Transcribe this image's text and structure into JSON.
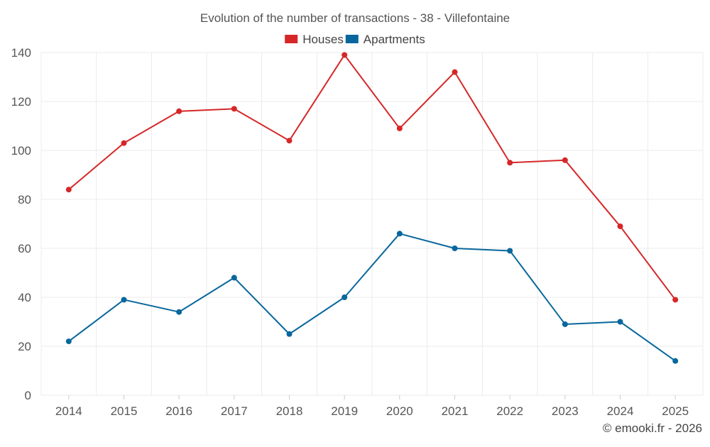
{
  "chart_data": {
    "type": "line",
    "title": "Evolution of the number of transactions - 38 - Villefontaine",
    "xlabel": "",
    "ylabel": "",
    "categories": [
      "2014",
      "2015",
      "2016",
      "2017",
      "2018",
      "2019",
      "2020",
      "2021",
      "2022",
      "2023",
      "2024",
      "2025"
    ],
    "series": [
      {
        "name": "Houses",
        "color": "#d62728",
        "values": [
          84,
          103,
          116,
          117,
          104,
          139,
          109,
          132,
          95,
          96,
          69,
          39
        ]
      },
      {
        "name": "Apartments",
        "color": "#08679c",
        "values": [
          22,
          39,
          34,
          48,
          25,
          40,
          66,
          60,
          59,
          29,
          30,
          14
        ]
      }
    ],
    "ylim": [
      0,
      140
    ],
    "yticks": [
      0,
      20,
      40,
      60,
      80,
      100,
      120,
      140
    ],
    "grid": true,
    "legend_position": "top-center"
  },
  "credit": "© emooki.fr - 2026"
}
